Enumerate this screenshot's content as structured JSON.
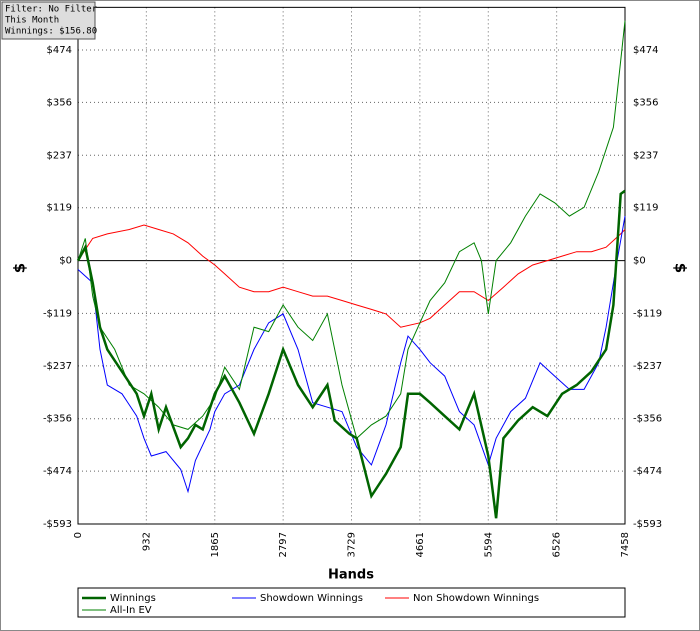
{
  "filter_box": {
    "lines": [
      "Filter: No Filter",
      "This Month",
      "Winnings: $156.80"
    ]
  },
  "chart_data": {
    "type": "line",
    "x_label": "Hands",
    "y_label": "$",
    "xlim": [
      0,
      7458
    ],
    "ylim": [
      -593,
      570
    ],
    "grid": true,
    "xticks": [
      0,
      932,
      1865,
      2797,
      3729,
      4661,
      5594,
      6526,
      7458
    ],
    "yticks": [
      {
        "value": -593,
        "label": "-$593"
      },
      {
        "value": -474,
        "label": "-$474"
      },
      {
        "value": -356,
        "label": "-$356"
      },
      {
        "value": -237,
        "label": "-$237"
      },
      {
        "value": -119,
        "label": "-$119"
      },
      {
        "value": 0,
        "label": "$0"
      },
      {
        "value": 119,
        "label": "$119"
      },
      {
        "value": 237,
        "label": "$237"
      },
      {
        "value": 356,
        "label": "$356"
      },
      {
        "value": 474,
        "label": "$474"
      }
    ],
    "series": [
      {
        "name": "Winnings",
        "color": "#006400",
        "width": 2.5,
        "x": [
          0,
          100,
          200,
          300,
          400,
          600,
          800,
          900,
          1000,
          1100,
          1200,
          1400,
          1500,
          1600,
          1700,
          1865,
          2000,
          2200,
          2400,
          2600,
          2797,
          3000,
          3200,
          3400,
          3500,
          3700,
          3800,
          4000,
          4200,
          4400,
          4500,
          4661,
          4800,
          5000,
          5200,
          5400,
          5594,
          5700,
          5800,
          6000,
          6200,
          6400,
          6600,
          6800,
          7000,
          7200,
          7300,
          7400,
          7458
        ],
        "values": [
          0,
          30,
          -50,
          -150,
          -200,
          -250,
          -300,
          -350,
          -300,
          -380,
          -330,
          -420,
          -400,
          -370,
          -380,
          -300,
          -260,
          -320,
          -390,
          -300,
          -200,
          -280,
          -330,
          -280,
          -360,
          -390,
          -400,
          -530,
          -480,
          -420,
          -300,
          -300,
          -320,
          -350,
          -380,
          -300,
          -440,
          -580,
          -400,
          -360,
          -330,
          -350,
          -300,
          -280,
          -250,
          -200,
          -100,
          150,
          157
        ]
      },
      {
        "name": "All-In EV",
        "color": "#008000",
        "width": 1,
        "x": [
          0,
          100,
          200,
          300,
          500,
          700,
          900,
          1100,
          1300,
          1500,
          1700,
          1865,
          2000,
          2200,
          2400,
          2600,
          2797,
          3000,
          3200,
          3400,
          3600,
          3800,
          4000,
          4200,
          4400,
          4500,
          4661,
          4800,
          5000,
          5200,
          5400,
          5500,
          5594,
          5700,
          5900,
          6100,
          6300,
          6500,
          6700,
          6900,
          7100,
          7300,
          7400,
          7458
        ],
        "values": [
          0,
          50,
          -80,
          -150,
          -200,
          -280,
          -300,
          -330,
          -370,
          -380,
          -350,
          -310,
          -240,
          -290,
          -150,
          -160,
          -100,
          -150,
          -180,
          -120,
          -280,
          -400,
          -370,
          -350,
          -300,
          -200,
          -140,
          -90,
          -50,
          20,
          40,
          0,
          -120,
          0,
          40,
          100,
          150,
          130,
          100,
          120,
          200,
          300,
          450,
          540
        ]
      },
      {
        "name": "Showdown Winnings",
        "color": "#0000ff",
        "width": 1,
        "x": [
          0,
          200,
          300,
          400,
          600,
          800,
          900,
          1000,
          1200,
          1400,
          1500,
          1600,
          1800,
          1865,
          2000,
          2200,
          2400,
          2600,
          2797,
          3000,
          3200,
          3400,
          3600,
          3800,
          4000,
          4200,
          4400,
          4500,
          4661,
          4800,
          5000,
          5200,
          5400,
          5594,
          5700,
          5900,
          6100,
          6300,
          6500,
          6700,
          6900,
          7100,
          7200,
          7350,
          7458
        ],
        "values": [
          -20,
          -50,
          -200,
          -280,
          -300,
          -350,
          -400,
          -440,
          -430,
          -470,
          -520,
          -450,
          -380,
          -340,
          -300,
          -280,
          -200,
          -140,
          -120,
          -200,
          -320,
          -330,
          -340,
          -420,
          -460,
          -370,
          -230,
          -170,
          -200,
          -230,
          -260,
          -340,
          -370,
          -460,
          -400,
          -340,
          -310,
          -230,
          -260,
          -290,
          -290,
          -230,
          -150,
          0,
          100
        ]
      },
      {
        "name": "Non Showdown Winnings",
        "color": "#ff0000",
        "width": 1,
        "x": [
          0,
          200,
          400,
          700,
          900,
          1100,
          1300,
          1500,
          1700,
          1865,
          2000,
          2200,
          2400,
          2600,
          2797,
          3000,
          3200,
          3400,
          3600,
          3800,
          4000,
          4200,
          4400,
          4661,
          4800,
          5000,
          5200,
          5400,
          5594,
          5800,
          6000,
          6200,
          6400,
          6600,
          6800,
          7000,
          7200,
          7400,
          7458
        ],
        "values": [
          0,
          50,
          60,
          70,
          80,
          70,
          60,
          40,
          10,
          -10,
          -30,
          -60,
          -70,
          -70,
          -60,
          -70,
          -80,
          -80,
          -90,
          -100,
          -110,
          -120,
          -150,
          -140,
          -130,
          -100,
          -70,
          -70,
          -90,
          -60,
          -30,
          -10,
          0,
          10,
          20,
          20,
          30,
          60,
          70
        ]
      }
    ]
  }
}
